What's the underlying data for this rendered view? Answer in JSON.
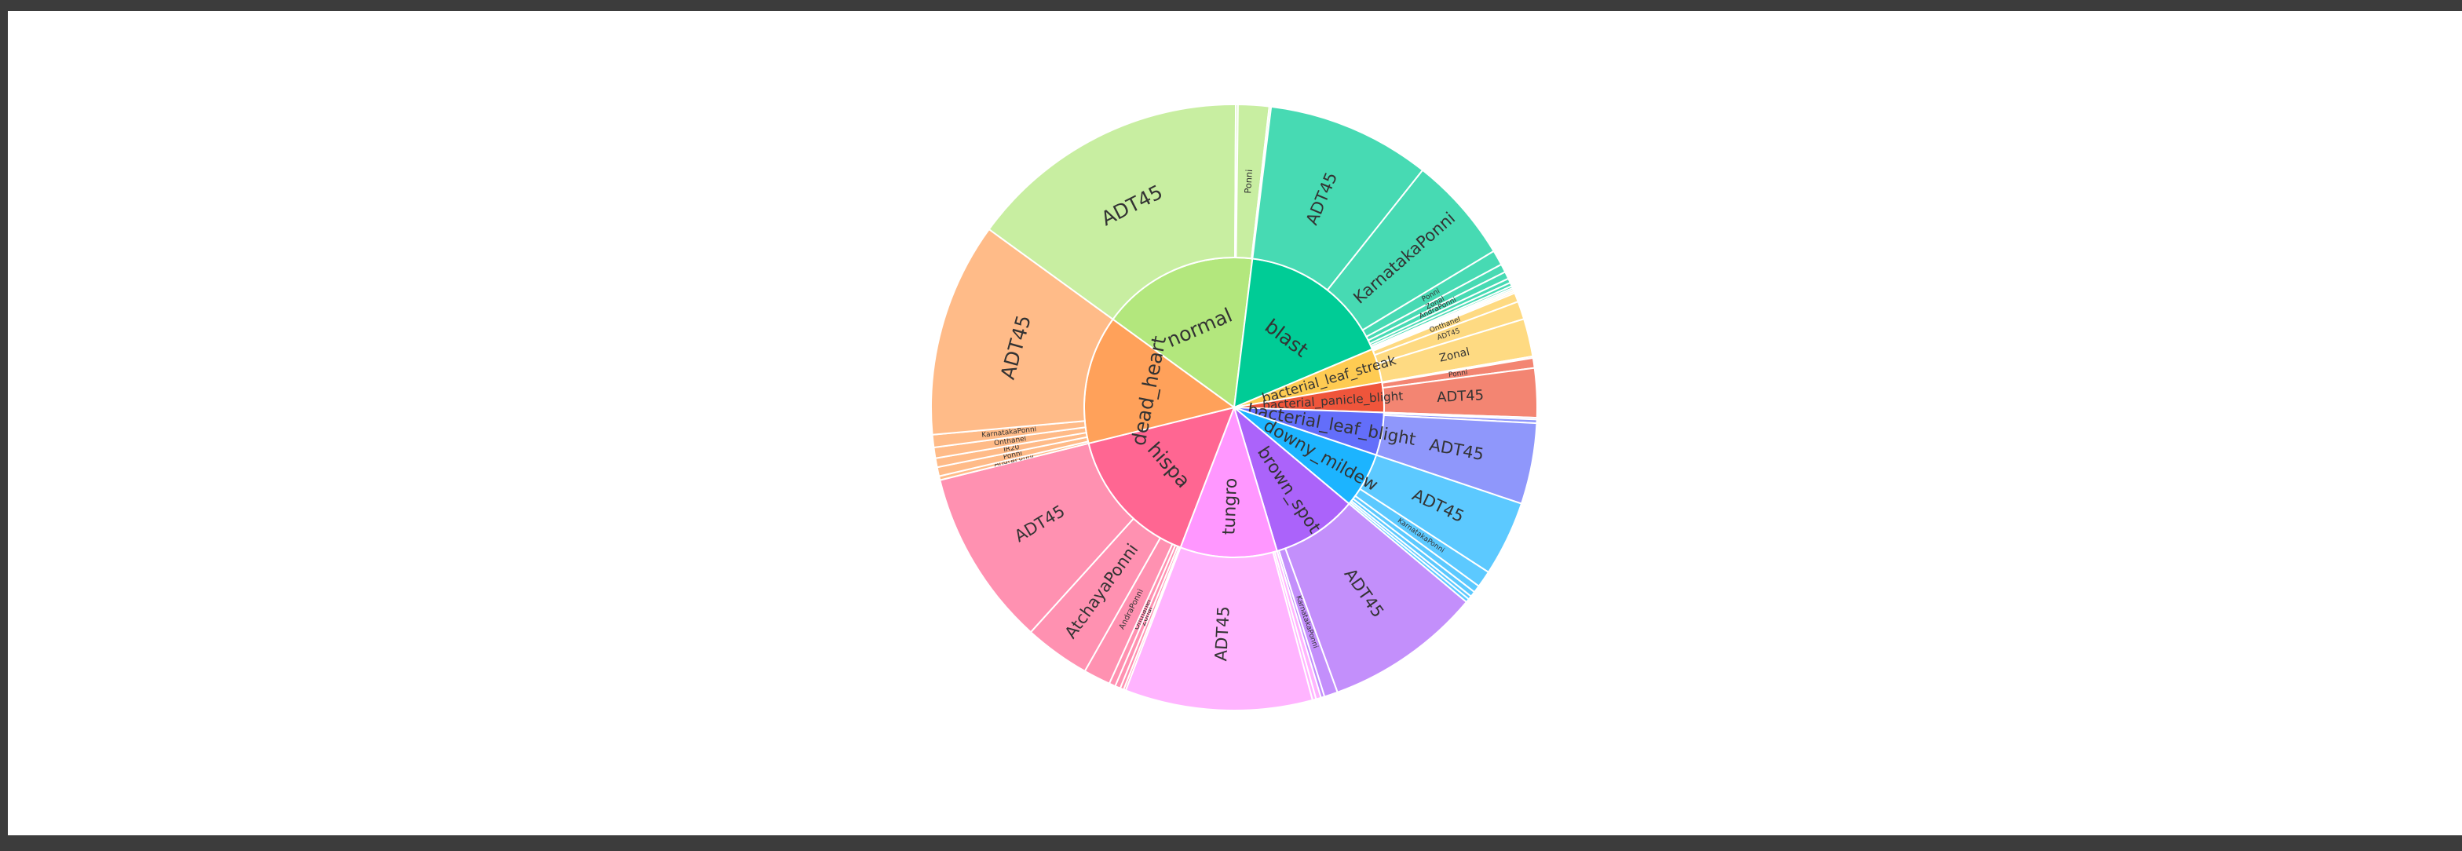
{
  "chart_data": {
    "type": "sunburst",
    "title": "",
    "colors": {
      "normal": "#b3e77d",
      "blast": "#00cc96",
      "bacterial_leaf_streak": "#fecb52",
      "bacterial_panicle_blight": "#ef553b",
      "bacterial_leaf_blight": "#636efa",
      "downy_mildew": "#1cb4ff",
      "brown_spot": "#ab63fa",
      "tungro": "#ff97ff",
      "hispa": "#ff6692",
      "dead_heart": "#ffa15a"
    },
    "categories": [
      {
        "label": "normal",
        "value": 1764,
        "children": [
          {
            "label": "ADT45",
            "value": 1570
          },
          {
            "label": "",
            "value": 12
          },
          {
            "label": "Ponni",
            "value": 172
          },
          {
            "label": "",
            "value": 10
          }
        ]
      },
      {
        "label": "blast",
        "value": 1738,
        "children": [
          {
            "label": "ADT45",
            "value": 909
          },
          {
            "label": "KarnatakaPonni",
            "value": 592
          },
          {
            "label": "Ponni",
            "value": 84
          },
          {
            "label": "Zonal",
            "value": 46
          },
          {
            "label": "AndraPonni",
            "value": 40
          },
          {
            "label": "",
            "value": 25
          },
          {
            "label": "",
            "value": 20
          },
          {
            "label": "",
            "value": 12
          },
          {
            "label": "",
            "value": 10
          }
        ]
      },
      {
        "label": "bacterial_leaf_streak",
        "value": 380,
        "children": [
          {
            "label": "",
            "value": 10
          },
          {
            "label": "",
            "value": 10
          },
          {
            "label": "Onthanel",
            "value": 50
          },
          {
            "label": "ADT45",
            "value": 100
          },
          {
            "label": "Zonal",
            "value": 210
          }
        ]
      },
      {
        "label": "bacterial_panicle_blight",
        "value": 337,
        "children": [
          {
            "label": "",
            "value": 9
          },
          {
            "label": "Ponni",
            "value": 55
          },
          {
            "label": "ADT45",
            "value": 273
          }
        ]
      },
      {
        "label": "bacterial_leaf_blight",
        "value": 479,
        "children": [
          {
            "label": "",
            "value": 10
          },
          {
            "label": "",
            "value": 20
          },
          {
            "label": "ADT45",
            "value": 449
          }
        ]
      },
      {
        "label": "downy_mildew",
        "value": 620,
        "children": [
          {
            "label": "ADT45",
            "value": 417
          },
          {
            "label": "KarnatakaPonni",
            "value": 93
          },
          {
            "label": "",
            "value": 40
          },
          {
            "label": "",
            "value": 30
          },
          {
            "label": "",
            "value": 20
          },
          {
            "label": "",
            "value": 20
          }
        ]
      },
      {
        "label": "brown_spot",
        "value": 965,
        "children": [
          {
            "label": "ADT45",
            "value": 870
          },
          {
            "label": "KarnatakaPonni",
            "value": 75
          },
          {
            "label": "",
            "value": 20
          }
        ]
      },
      {
        "label": "tungro",
        "value": 1088,
        "children": [
          {
            "label": "",
            "value": 28
          },
          {
            "label": "",
            "value": 20
          },
          {
            "label": "ADT45",
            "value": 1040
          }
        ]
      },
      {
        "label": "hispa",
        "value": 1594,
        "children": [
          {
            "label": "",
            "value": 12
          },
          {
            "label": "",
            "value": 20
          },
          {
            "label": "Zonal",
            "value": 30
          },
          {
            "label": "Onthanel",
            "value": 35
          },
          {
            "label": "AndraPonni",
            "value": 150
          },
          {
            "label": "AtchayaPonni",
            "value": 365
          },
          {
            "label": "ADT45",
            "value": 982
          }
        ]
      },
      {
        "label": "dead_heart",
        "value": 1442,
        "children": [
          {
            "label": "AndraPonni",
            "value": 22
          },
          {
            "label": "Ponni",
            "value": 50
          },
          {
            "label": "IR20",
            "value": 50
          },
          {
            "label": "Onthanel",
            "value": 60
          },
          {
            "label": "KarnatakaPonni",
            "value": 70
          },
          {
            "label": "ADT45",
            "value": 1190
          }
        ]
      }
    ]
  }
}
